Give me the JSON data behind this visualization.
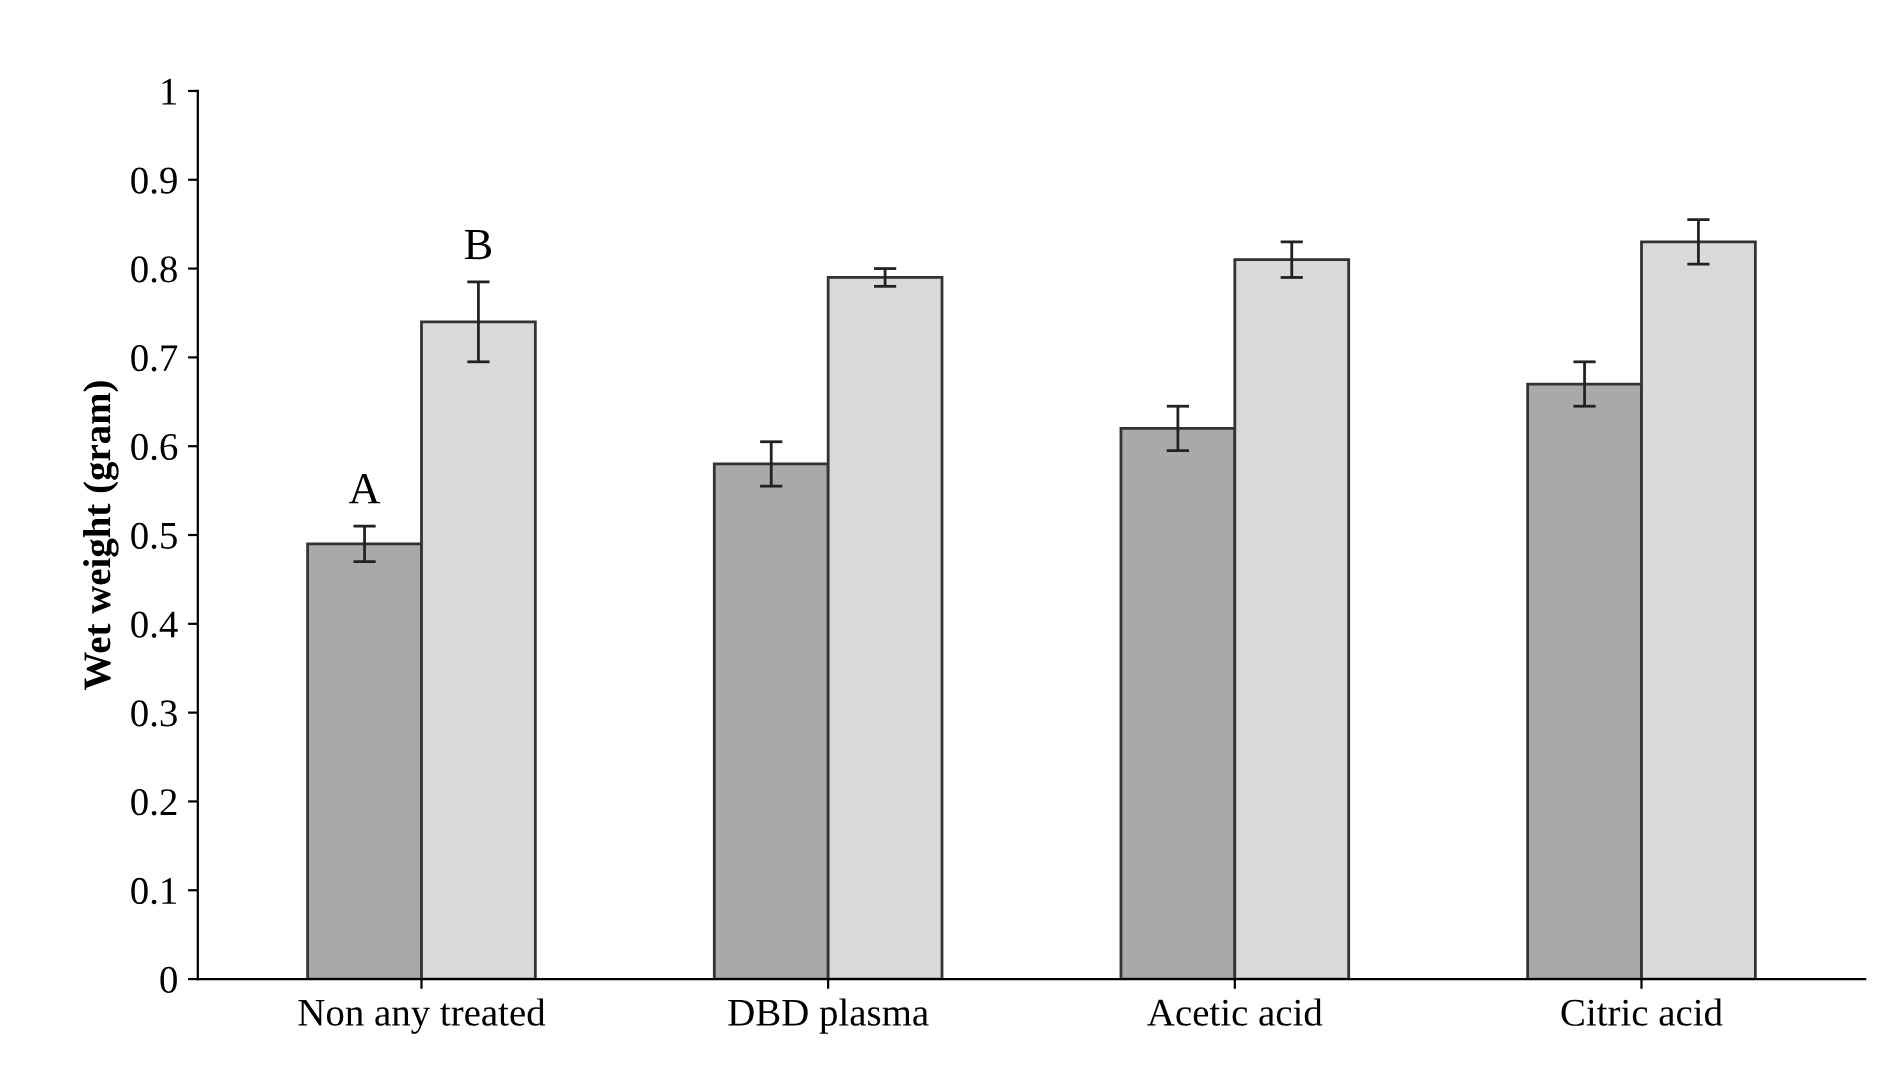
{
  "chart_data": {
    "type": "bar",
    "ylabel": "Wet weight (gram)",
    "categories": [
      "Non any treated",
      "DBD plasma",
      "Acetic acid",
      "Citric acid"
    ],
    "series": [
      {
        "color": "#a9a9a9",
        "values": [
          0.49,
          0.58,
          0.62,
          0.67
        ],
        "errors": [
          0.02,
          0.025,
          0.025,
          0.025
        ]
      },
      {
        "color": "#d9d9d9",
        "values": [
          0.74,
          0.79,
          0.81,
          0.83
        ],
        "errors": [
          0.045,
          0.01,
          0.02,
          0.025
        ]
      }
    ],
    "annotations": [
      "A",
      "B"
    ],
    "ylim": [
      0,
      1
    ],
    "yticks": [
      0,
      0.1,
      0.2,
      0.3,
      0.4,
      0.5,
      0.6,
      0.7,
      0.8,
      0.9,
      1
    ],
    "grid": false,
    "legend": false
  }
}
